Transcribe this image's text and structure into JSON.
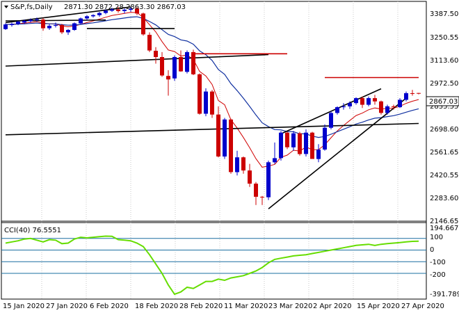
{
  "header": {
    "symbol": "S&P,fs,Daily",
    "ohlc": "2871.30 2872.28 2863.30 2867.03"
  },
  "indicator": {
    "label": "CCI(40) 76.5551",
    "max_label": "194.667",
    "min_label": "-391.789",
    "levels": [
      "100",
      "0",
      "-100",
      "-200"
    ],
    "color": "#66dd00",
    "level_color": "#1a6fa0"
  },
  "price_axis": {
    "labels": [
      "3387.50",
      "3250.55",
      "3113.60",
      "2972.50",
      "2835.55",
      "2698.60",
      "2561.65",
      "2420.55",
      "2283.60",
      "2146.65"
    ],
    "current_price": "2867.03"
  },
  "date_axis": {
    "labels": [
      "15 Jan 2020",
      "27 Jan 2020",
      "6 Feb 2020",
      "18 Feb 2020",
      "28 Feb 2020",
      "11 Mar 2020",
      "23 Mar 2020",
      "2 Apr 2020",
      "15 Apr 2020",
      "27 Apr 2020"
    ]
  },
  "colors": {
    "bull_candle": "#0000cc",
    "bear_candle": "#cc0000",
    "ema_fast": "#d00000",
    "ema_slow": "#1030a0",
    "trendline": "#000000",
    "resistance": "#cc0000",
    "grid": "#000000"
  },
  "chart_data": {
    "type": "candlestick",
    "y_range": [
      2100,
      3420
    ],
    "candles": [
      {
        "o": 3260,
        "h": 3295,
        "l": 3255,
        "c": 3288
      },
      {
        "o": 3285,
        "h": 3300,
        "l": 3275,
        "c": 3292
      },
      {
        "o": 3292,
        "h": 3310,
        "l": 3284,
        "c": 3305
      },
      {
        "o": 3300,
        "h": 3318,
        "l": 3290,
        "c": 3310
      },
      {
        "o": 3308,
        "h": 3325,
        "l": 3300,
        "c": 3316
      },
      {
        "o": 3316,
        "h": 3330,
        "l": 3305,
        "c": 3320
      },
      {
        "o": 3318,
        "h": 3328,
        "l": 3250,
        "c": 3265
      },
      {
        "o": 3265,
        "h": 3290,
        "l": 3255,
        "c": 3280
      },
      {
        "o": 3280,
        "h": 3300,
        "l": 3270,
        "c": 3285
      },
      {
        "o": 3285,
        "h": 3292,
        "l": 3230,
        "c": 3240
      },
      {
        "o": 3240,
        "h": 3260,
        "l": 3225,
        "c": 3255
      },
      {
        "o": 3255,
        "h": 3300,
        "l": 3250,
        "c": 3295
      },
      {
        "o": 3295,
        "h": 3330,
        "l": 3290,
        "c": 3325
      },
      {
        "o": 3325,
        "h": 3345,
        "l": 3315,
        "c": 3338
      },
      {
        "o": 3338,
        "h": 3350,
        "l": 3330,
        "c": 3345
      },
      {
        "o": 3345,
        "h": 3365,
        "l": 3335,
        "c": 3358
      },
      {
        "o": 3358,
        "h": 3380,
        "l": 3350,
        "c": 3372
      },
      {
        "o": 3372,
        "h": 3390,
        "l": 3365,
        "c": 3380
      },
      {
        "o": 3380,
        "h": 3395,
        "l": 3360,
        "c": 3370
      },
      {
        "o": 3370,
        "h": 3385,
        "l": 3355,
        "c": 3378
      },
      {
        "o": 3378,
        "h": 3393,
        "l": 3365,
        "c": 3385
      },
      {
        "o": 3385,
        "h": 3394,
        "l": 3345,
        "c": 3355
      },
      {
        "o": 3355,
        "h": 3360,
        "l": 3220,
        "c": 3228
      },
      {
        "o": 3225,
        "h": 3240,
        "l": 3120,
        "c": 3130
      },
      {
        "o": 3128,
        "h": 3150,
        "l": 3050,
        "c": 3090
      },
      {
        "o": 3090,
        "h": 3120,
        "l": 2970,
        "c": 2978
      },
      {
        "o": 2975,
        "h": 3010,
        "l": 2855,
        "c": 2954
      },
      {
        "o": 2960,
        "h": 3100,
        "l": 2945,
        "c": 3090
      },
      {
        "o": 3090,
        "h": 3130,
        "l": 3000,
        "c": 3003
      },
      {
        "o": 3000,
        "h": 3130,
        "l": 2990,
        "c": 3120
      },
      {
        "o": 3120,
        "h": 3135,
        "l": 2980,
        "c": 2985
      },
      {
        "o": 2985,
        "h": 2990,
        "l": 2740,
        "c": 2745
      },
      {
        "o": 2745,
        "h": 2900,
        "l": 2730,
        "c": 2880
      },
      {
        "o": 2880,
        "h": 2890,
        "l": 2720,
        "c": 2740
      },
      {
        "o": 2740,
        "h": 2790,
        "l": 2480,
        "c": 2485
      },
      {
        "o": 2485,
        "h": 2720,
        "l": 2470,
        "c": 2710
      },
      {
        "o": 2710,
        "h": 2715,
        "l": 2380,
        "c": 2390
      },
      {
        "o": 2390,
        "h": 2520,
        "l": 2370,
        "c": 2480
      },
      {
        "o": 2480,
        "h": 2485,
        "l": 2380,
        "c": 2400
      },
      {
        "o": 2400,
        "h": 2440,
        "l": 2300,
        "c": 2320
      },
      {
        "o": 2320,
        "h": 2330,
        "l": 2190,
        "c": 2240
      },
      {
        "o": 2240,
        "h": 2245,
        "l": 2190,
        "c": 2237
      },
      {
        "o": 2237,
        "h": 2460,
        "l": 2220,
        "c": 2450
      },
      {
        "o": 2450,
        "h": 2570,
        "l": 2440,
        "c": 2475
      },
      {
        "o": 2475,
        "h": 2640,
        "l": 2460,
        "c": 2630
      },
      {
        "o": 2630,
        "h": 2635,
        "l": 2530,
        "c": 2541
      },
      {
        "o": 2541,
        "h": 2640,
        "l": 2520,
        "c": 2626
      },
      {
        "o": 2626,
        "h": 2635,
        "l": 2490,
        "c": 2500
      },
      {
        "o": 2500,
        "h": 2650,
        "l": 2485,
        "c": 2630
      },
      {
        "o": 2630,
        "h": 2635,
        "l": 2470,
        "c": 2470
      },
      {
        "o": 2470,
        "h": 2560,
        "l": 2450,
        "c": 2527
      },
      {
        "o": 2527,
        "h": 2680,
        "l": 2520,
        "c": 2660
      },
      {
        "o": 2660,
        "h": 2760,
        "l": 2650,
        "c": 2750
      },
      {
        "o": 2750,
        "h": 2790,
        "l": 2740,
        "c": 2785
      },
      {
        "o": 2785,
        "h": 2810,
        "l": 2770,
        "c": 2790
      },
      {
        "o": 2790,
        "h": 2820,
        "l": 2775,
        "c": 2810
      },
      {
        "o": 2810,
        "h": 2845,
        "l": 2800,
        "c": 2840
      },
      {
        "o": 2840,
        "h": 2850,
        "l": 2780,
        "c": 2800
      },
      {
        "o": 2800,
        "h": 2850,
        "l": 2790,
        "c": 2840
      },
      {
        "o": 2840,
        "h": 2860,
        "l": 2800,
        "c": 2820
      },
      {
        "o": 2820,
        "h": 2825,
        "l": 2740,
        "c": 2750
      },
      {
        "o": 2750,
        "h": 2800,
        "l": 2740,
        "c": 2790
      },
      {
        "o": 2790,
        "h": 2800,
        "l": 2770,
        "c": 2785
      },
      {
        "o": 2785,
        "h": 2840,
        "l": 2780,
        "c": 2830
      },
      {
        "o": 2830,
        "h": 2880,
        "l": 2820,
        "c": 2870
      },
      {
        "o": 2870,
        "h": 2890,
        "l": 2855,
        "c": 2868
      },
      {
        "o": 2871.3,
        "h": 2872.28,
        "l": 2863.3,
        "c": 2867.03
      }
    ],
    "cci_values": [
      60,
      70,
      80,
      95,
      100,
      85,
      70,
      90,
      85,
      55,
      60,
      95,
      110,
      105,
      110,
      115,
      120,
      118,
      90,
      85,
      80,
      60,
      30,
      -40,
      -120,
      -200,
      -300,
      -380,
      -360,
      -320,
      -330,
      -300,
      -270,
      -270,
      -250,
      -260,
      -240,
      -230,
      -220,
      -200,
      -180,
      -150,
      -110,
      -80,
      -70,
      -60,
      -50,
      -45,
      -40,
      -30,
      -20,
      -10,
      0,
      10,
      20,
      30,
      40,
      45,
      50,
      40,
      50,
      55,
      60,
      65,
      70,
      75,
      76.5551
    ]
  }
}
